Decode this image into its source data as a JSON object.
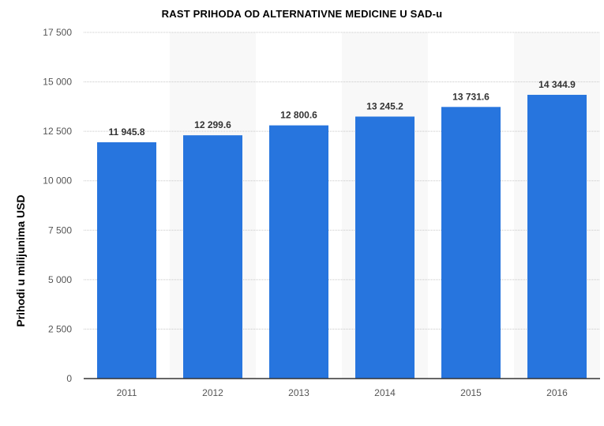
{
  "chart_data": {
    "type": "bar",
    "title": "RAST PRIHODA OD ALTERNATIVNE MEDICINE U SAD-u",
    "xlabel": "",
    "ylabel": "Prihodi u milijunima USD",
    "categories": [
      "2011",
      "2012",
      "2013",
      "2014",
      "2015",
      "2016"
    ],
    "values": [
      11945.8,
      12299.6,
      12800.6,
      13245.2,
      13731.6,
      14344.9
    ],
    "data_labels": [
      "11 945.8",
      "12 299.6",
      "12 800.6",
      "13 245.2",
      "13 731.6",
      "14 344.9"
    ],
    "ylim": [
      0,
      17500
    ],
    "yticks": [
      0,
      2500,
      5000,
      7500,
      10000,
      12500,
      15000,
      17500
    ],
    "ytick_labels": [
      "0",
      "2 500",
      "5 000",
      "7 500",
      "10 000",
      "12 500",
      "15 000",
      "17 500"
    ],
    "grid": true,
    "legend": "none",
    "colors": {
      "bar": "#2775de",
      "band": "#f8f8f8",
      "grid": "#c8c8c8",
      "axis": "#333333"
    }
  }
}
